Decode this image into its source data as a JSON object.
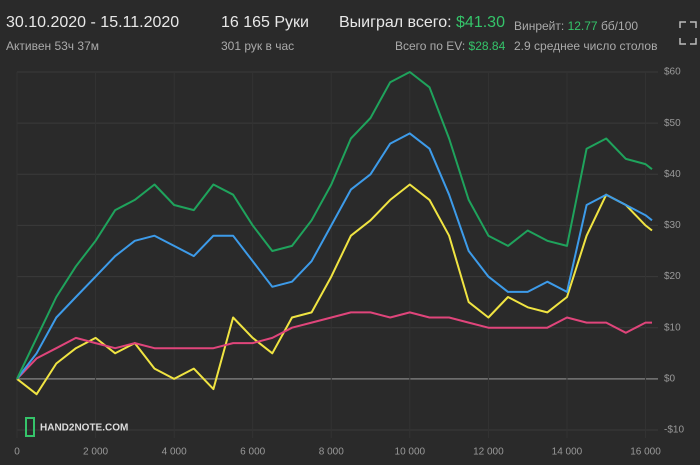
{
  "header": {
    "date_range": "30.10.2020 - 15.11.2020",
    "active": "Активен 53ч 37м",
    "hands": "16 165 Руки",
    "hands_per_hour": "301 рук в час",
    "won_label": "Выиграл всего:",
    "won_value": "$41.30",
    "ev_label": "Всего по EV:",
    "ev_value": "$28.84",
    "winrate_label": "Винрейт:",
    "winrate_value": "12.77",
    "winrate_unit": "бб/100",
    "tables": "2.9 среднее число столов"
  },
  "watermark": "HAND2NOTE.COM",
  "chart_data": {
    "type": "line",
    "x": [
      0,
      500,
      1000,
      1500,
      2000,
      2500,
      3000,
      3500,
      4000,
      4500,
      5000,
      5500,
      6000,
      6500,
      7000,
      7500,
      8000,
      8500,
      9000,
      9500,
      10000,
      10500,
      11000,
      11500,
      12000,
      12500,
      13000,
      13500,
      14000,
      14500,
      15000,
      15500,
      16000,
      16165
    ],
    "series": [
      {
        "color": "#f0e442",
        "values": [
          0,
          -3,
          3,
          6,
          8,
          5,
          7,
          2,
          0,
          2,
          -2,
          12,
          8,
          5,
          12,
          13,
          20,
          28,
          31,
          35,
          38,
          35,
          28,
          15,
          12,
          16,
          14,
          13,
          16,
          28,
          36,
          34,
          30,
          29
        ]
      },
      {
        "color": "#e0457b",
        "values": [
          0,
          4,
          6,
          8,
          7,
          6,
          7,
          6,
          6,
          6,
          6,
          7,
          7,
          8,
          10,
          11,
          12,
          13,
          13,
          12,
          13,
          12,
          12,
          11,
          10,
          10,
          10,
          10,
          12,
          11,
          11,
          9,
          11,
          11
        ]
      },
      {
        "color": "#3d9be9",
        "values": [
          0,
          5,
          12,
          16,
          20,
          24,
          27,
          28,
          26,
          24,
          28,
          28,
          23,
          18,
          19,
          23,
          30,
          37,
          40,
          46,
          48,
          45,
          36,
          25,
          20,
          17,
          17,
          19,
          17,
          34,
          36,
          34,
          32,
          31
        ]
      },
      {
        "color": "#1fa35c",
        "values": [
          0,
          8,
          16,
          22,
          27,
          33,
          35,
          38,
          34,
          33,
          38,
          36,
          30,
          25,
          26,
          31,
          38,
          47,
          51,
          58,
          60,
          57,
          47,
          35,
          28,
          26,
          29,
          27,
          26,
          45,
          47,
          43,
          42,
          41
        ]
      }
    ],
    "xlim": [
      0,
      16165
    ],
    "ylim": [
      -10,
      60
    ],
    "xticks": [
      0,
      {
        "value": 2000,
        "label": "2 000"
      },
      {
        "value": 4000,
        "label": "4 000"
      },
      {
        "value": 6000,
        "label": "6 000"
      },
      {
        "value": 8000,
        "label": "8 000"
      },
      {
        "value": 10000,
        "label": "10 000"
      },
      {
        "value": 12000,
        "label": "12 000"
      },
      {
        "value": 14000,
        "label": "14 000"
      },
      {
        "value": 16000,
        "label": "16 000"
      }
    ],
    "yticks": [
      {
        "value": -10,
        "label": "-$10"
      },
      {
        "value": 0,
        "label": "$0"
      },
      {
        "value": 10,
        "label": "$10"
      },
      {
        "value": 20,
        "label": "$20"
      },
      {
        "value": 30,
        "label": "$30"
      },
      {
        "value": 40,
        "label": "$40"
      },
      {
        "value": 50,
        "label": "$50"
      },
      {
        "value": 60,
        "label": "$60"
      }
    ],
    "grid": true
  }
}
